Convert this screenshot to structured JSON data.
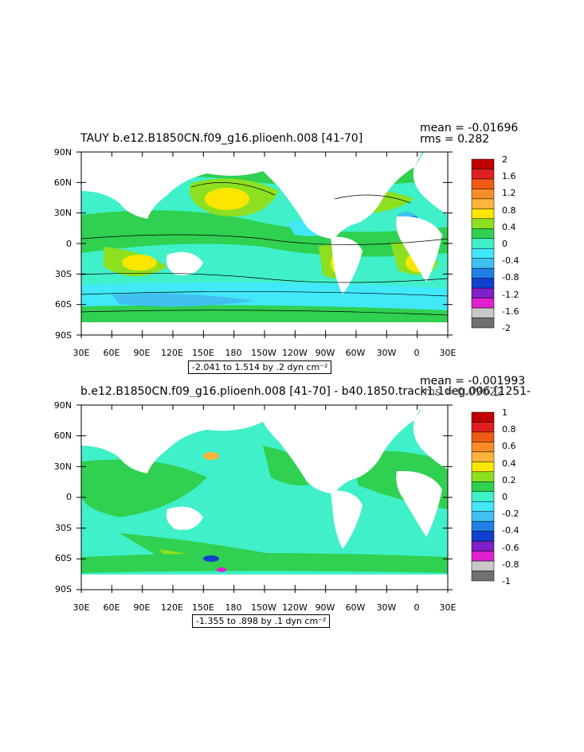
{
  "panels": [
    {
      "title": "TAUY b.e12.B1850CN.f09_g16.plioenh.008 [41-70]",
      "mean": "mean = -0.01696",
      "rms": "rms = 0.282",
      "range_label": "-2.041 to 1.514 by .2 dyn cm⁻²",
      "colorbar_labels": [
        "2",
        "1.6",
        "1.2",
        "0.8",
        "0.4",
        "0",
        "-0.4",
        "-0.8",
        "-1.2",
        "-1.6",
        "-2"
      ],
      "colorbar_colors": [
        "#c00000",
        "#e02020",
        "#f05a14",
        "#f88c28",
        "#fcb43c",
        "#fce600",
        "#8ce020",
        "#30d050",
        "#40f0c8",
        "#40e8f8",
        "#40c0f0",
        "#2080e8",
        "#1040d0",
        "#8020c8",
        "#e020d0",
        "#c8c8c8",
        "#707070"
      ]
    },
    {
      "title": "b.e12.B1850CN.f09_g16.plioenh.008 [41-70] - b40.1850.track1.1deg.006 [1251-",
      "mean": "mean = -0.001993",
      "rms": "rms = 0.09022",
      "range_label": "-1.355 to .898 by .1 dyn cm⁻²",
      "colorbar_labels": [
        "1",
        "0.8",
        "0.6",
        "0.4",
        "0.2",
        "0",
        "-0.2",
        "-0.4",
        "-0.6",
        "-0.8",
        "-1"
      ],
      "colorbar_colors": [
        "#c00000",
        "#e02020",
        "#f05a14",
        "#f88c28",
        "#fcb43c",
        "#fce600",
        "#8ce020",
        "#30d050",
        "#40f0c8",
        "#40e8f8",
        "#40c0f0",
        "#2080e8",
        "#1040d0",
        "#8020c8",
        "#e020d0",
        "#c8c8c8",
        "#707070"
      ]
    }
  ],
  "axes": {
    "lat_labels": [
      "90N",
      "60N",
      "30N",
      "0",
      "30S",
      "60S",
      "90S"
    ],
    "lon_labels": [
      "30E",
      "60E",
      "90E",
      "120E",
      "150E",
      "180",
      "150W",
      "120W",
      "90W",
      "60W",
      "30W",
      "0",
      "30E"
    ]
  },
  "colors": {
    "ocean_green": "#30d050",
    "ocean_cyan": "#40f0c8",
    "land": "#ffffff"
  }
}
